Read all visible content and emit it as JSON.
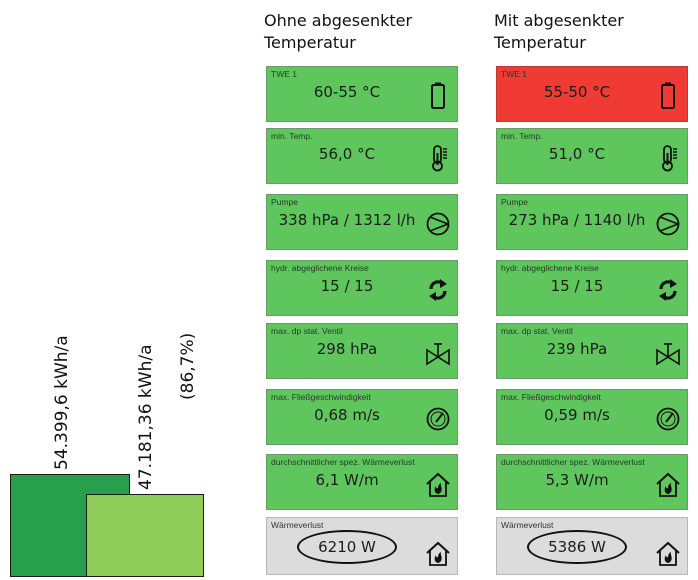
{
  "bars": {
    "left": {
      "label": "54.399,6 kWh/a",
      "color": "#26a04a"
    },
    "right": {
      "label": "47.181,36 kWh/a",
      "percent": "(86,7%)",
      "color": "#8fcd5a"
    }
  },
  "columns": [
    {
      "title_line1": "Ohne abgesenkter",
      "title_line2": "Temperatur",
      "tiles": [
        {
          "label": "TWE 1",
          "value": "60-55 °C",
          "icon": "battery-icon",
          "status": "ok"
        },
        {
          "label": "min. Temp.",
          "value": "56,0 °C",
          "icon": "thermometer-icon",
          "status": "ok"
        },
        {
          "label": "Pumpe",
          "value": "338 hPa  /  1312 l/h",
          "icon": "pump-icon",
          "status": "ok"
        },
        {
          "label": "hydr. abgeglichene Kreise",
          "value": "15 / 15",
          "icon": "refresh-icon",
          "status": "ok"
        },
        {
          "label": "max. dp stat. Ventil",
          "value": "298 hPa",
          "icon": "valve-icon",
          "status": "ok"
        },
        {
          "label": "max. Fließgeschwindigkeit",
          "value": "0,68 m/s",
          "icon": "gauge-icon",
          "status": "ok"
        },
        {
          "label": "durchschnittlicher spez. Wärmeverlust",
          "value": "6,1 W/m",
          "icon": "house-fire-icon",
          "status": "ok"
        },
        {
          "label": "Wärmeverlust",
          "value": "6210 W",
          "icon": "house-fire-icon",
          "status": "neutral"
        }
      ]
    },
    {
      "title_line1": "Mit abgesenkter",
      "title_line2": "Temperatur",
      "tiles": [
        {
          "label": "TWE 1",
          "value": "55-50 °C",
          "icon": "battery-icon",
          "status": "alert"
        },
        {
          "label": "min. Temp.",
          "value": "51,0 °C",
          "icon": "thermometer-icon",
          "status": "ok"
        },
        {
          "label": "Pumpe",
          "value": "273 hPa  /  1140 l/h",
          "icon": "pump-icon",
          "status": "ok"
        },
        {
          "label": "hydr. abgeglichene Kreise",
          "value": "15 / 15",
          "icon": "refresh-icon",
          "status": "ok"
        },
        {
          "label": "max. dp stat. Ventil",
          "value": "239 hPa",
          "icon": "valve-icon",
          "status": "ok"
        },
        {
          "label": "max. Fließgeschwindigkeit",
          "value": "0,59 m/s",
          "icon": "gauge-icon",
          "status": "ok"
        },
        {
          "label": "durchschnittlicher spez. Wärmeverlust",
          "value": "5,3 W/m",
          "icon": "house-fire-icon",
          "status": "ok"
        },
        {
          "label": "Wärmeverlust",
          "value": "5386 W",
          "icon": "house-fire-icon",
          "status": "neutral"
        }
      ]
    }
  ],
  "colors": {
    "ok": "#5ec65c",
    "alert": "#f03a34",
    "neutral": "#dcdcdc"
  }
}
